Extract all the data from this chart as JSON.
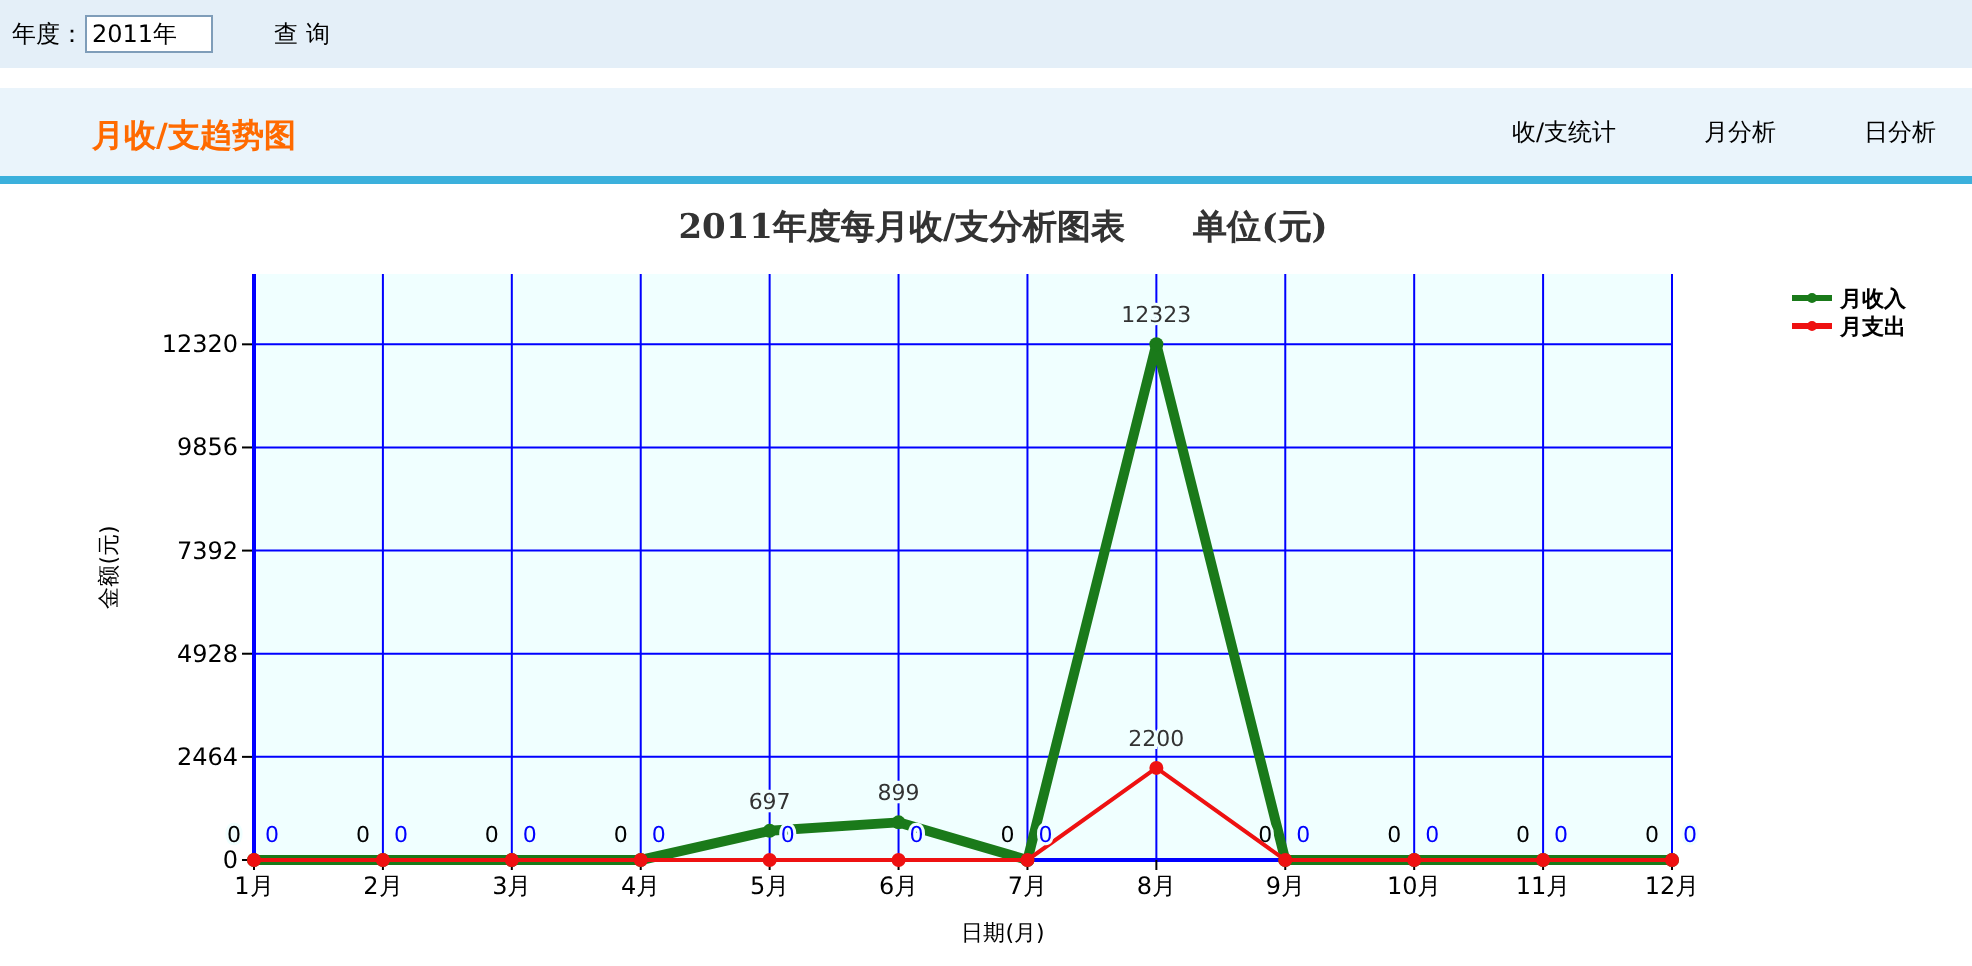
{
  "chart_data": {
    "type": "line",
    "title": "2011年度每月收/支分析图表　　单位(元)",
    "xlabel": "日期(月)",
    "ylabel": "金额(元)",
    "categories": [
      "1月",
      "2月",
      "3月",
      "4月",
      "5月",
      "6月",
      "7月",
      "8月",
      "9月",
      "10月",
      "11月",
      "12月"
    ],
    "series": [
      {
        "name": "月收入",
        "color": "#1a7a1a",
        "values": [
          0,
          0,
          0,
          0,
          697,
          899,
          0,
          12323,
          0,
          0,
          0,
          0
        ]
      },
      {
        "name": "月支出",
        "color": "#ee1111",
        "values": [
          0,
          0,
          0,
          0,
          0,
          0,
          0,
          2200,
          0,
          0,
          0,
          0
        ]
      }
    ],
    "ylim": [
      0,
      14000
    ],
    "yticks": [
      0,
      2464,
      4928,
      7392,
      9856,
      12320
    ],
    "grid": true,
    "legend": "top right",
    "marker": "circle",
    "line_style": "solid",
    "data_labels": true,
    "annotations": [
      "年度：",
      "2011年",
      "查 询",
      "月收/支趋势图",
      "收/支统计",
      "月分析",
      "日分析"
    ]
  }
}
